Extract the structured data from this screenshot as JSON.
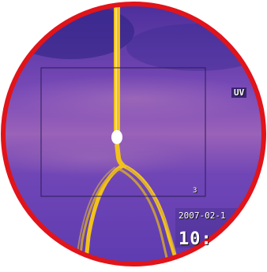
{
  "scene": {
    "description_colors": {
      "background": "#6f45b8",
      "background_dark": "#3d2a8f",
      "haze": "#a06ab8",
      "conductor": "#f2c21a",
      "ring": "#e0141a"
    },
    "overlay": {
      "mode_label": "UV",
      "zone_number": "3",
      "date": "2007-02-1",
      "time": "10:"
    }
  }
}
